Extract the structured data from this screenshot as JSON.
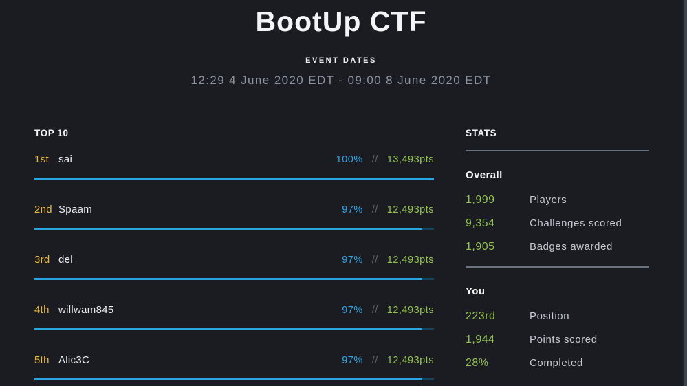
{
  "header": {
    "title": "BootUp CTF",
    "event_dates_label": "EVENT DATES",
    "event_dates": "12:29 4 June 2020 EDT - 09:00 8 June 2020 EDT"
  },
  "leaderboard": {
    "heading": "TOP 10",
    "separator": "//",
    "rows": [
      {
        "rank": "1st",
        "name": "sai",
        "percent": "100%",
        "percent_value": 100,
        "points": "13,493pts"
      },
      {
        "rank": "2nd",
        "name": "Spaam",
        "percent": "97%",
        "percent_value": 97,
        "points": "12,493pts"
      },
      {
        "rank": "3rd",
        "name": "del",
        "percent": "97%",
        "percent_value": 97,
        "points": "12,493pts"
      },
      {
        "rank": "4th",
        "name": "willwam845",
        "percent": "97%",
        "percent_value": 97,
        "points": "12,493pts"
      },
      {
        "rank": "5th",
        "name": "Alic3C",
        "percent": "97%",
        "percent_value": 97,
        "points": "12,493pts"
      }
    ]
  },
  "stats": {
    "heading": "STATS",
    "sections": [
      {
        "title": "Overall",
        "rows": [
          {
            "value": "1,999",
            "label": "Players"
          },
          {
            "value": "9,354",
            "label": "Challenges scored"
          },
          {
            "value": "1,905",
            "label": "Badges awarded"
          }
        ]
      },
      {
        "title": "You",
        "rows": [
          {
            "value": "223rd",
            "label": "Position"
          },
          {
            "value": "1,944",
            "label": "Points scored"
          },
          {
            "value": "28%",
            "label": "Completed"
          }
        ]
      }
    ]
  },
  "colors": {
    "background": "#1a1c21",
    "accent_blue": "#29a5e1",
    "bar_unfilled": "#15465f",
    "rank_yellow": "#e9b942",
    "points_green": "#93c150",
    "divider_gray": "#6b7380",
    "date_text": "#8b93a3",
    "label_gray": "#c5cad1"
  }
}
